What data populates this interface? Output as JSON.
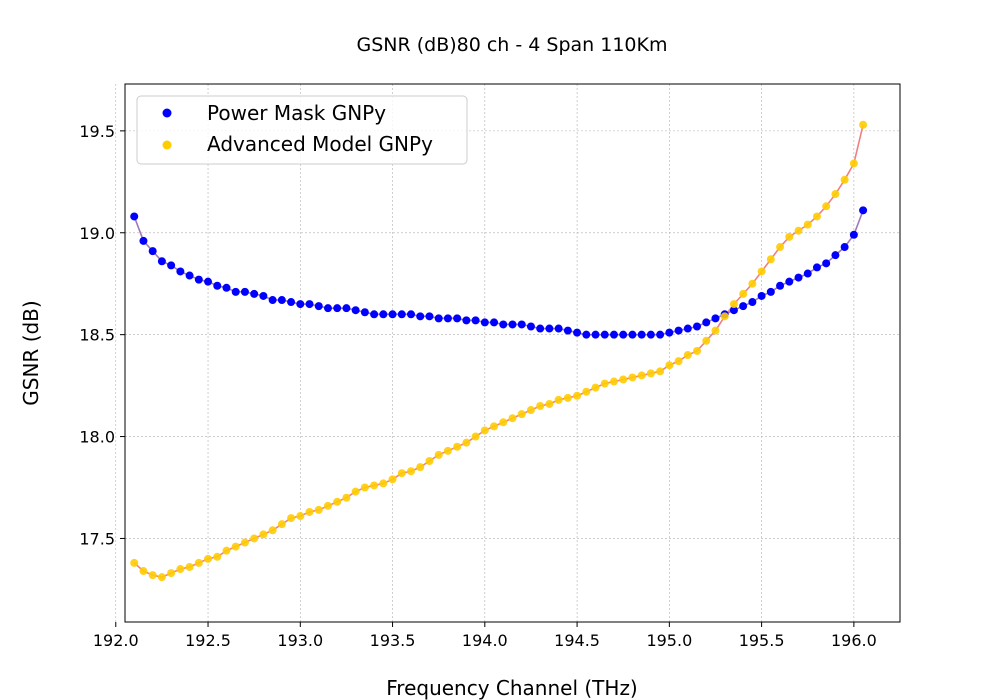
{
  "chart_data": {
    "type": "scatter",
    "title": "GSNR (dB)80 ch - 4 Span 110Km",
    "xlabel": "Frequency Channel (THz)",
    "ylabel": "GSNR (dB)",
    "xlim": [
      192.05,
      196.25
    ],
    "ylim": [
      17.09,
      19.73
    ],
    "xticks": [
      192.0,
      192.5,
      193.0,
      193.5,
      194.0,
      194.5,
      195.0,
      195.5,
      196.0
    ],
    "xtick_labels": [
      "192.0",
      "192.5",
      "193.0",
      "193.5",
      "194.0",
      "194.5",
      "195.0",
      "195.5",
      "196.0"
    ],
    "yticks": [
      17.5,
      18.0,
      18.5,
      19.0,
      19.5
    ],
    "ytick_labels": [
      "17.5",
      "18.0",
      "18.5",
      "19.0",
      "19.5"
    ],
    "grid": true,
    "legend_position": "upper-left",
    "x": [
      192.1,
      192.15,
      192.2,
      192.25,
      192.3,
      192.35,
      192.4,
      192.45,
      192.5,
      192.55,
      192.6,
      192.65,
      192.7,
      192.75,
      192.8,
      192.85,
      192.9,
      192.95,
      193.0,
      193.05,
      193.1,
      193.15,
      193.2,
      193.25,
      193.3,
      193.35,
      193.4,
      193.45,
      193.5,
      193.55,
      193.6,
      193.65,
      193.7,
      193.75,
      193.8,
      193.85,
      193.9,
      193.95,
      194.0,
      194.05,
      194.1,
      194.15,
      194.2,
      194.25,
      194.3,
      194.35,
      194.4,
      194.45,
      194.5,
      194.55,
      194.6,
      194.65,
      194.7,
      194.75,
      194.8,
      194.85,
      194.9,
      194.95,
      195.0,
      195.05,
      195.1,
      195.15,
      195.2,
      195.25,
      195.3,
      195.35,
      195.4,
      195.45,
      195.5,
      195.55,
      195.6,
      195.65,
      195.7,
      195.75,
      195.8,
      195.85,
      195.9,
      195.95,
      196.0,
      196.05
    ],
    "series": [
      {
        "name": "Power Mask GNPy",
        "color": "#0000ff",
        "line_color": "#a07ab8",
        "values": [
          19.08,
          18.96,
          18.91,
          18.86,
          18.84,
          18.81,
          18.79,
          18.77,
          18.76,
          18.74,
          18.73,
          18.71,
          18.71,
          18.7,
          18.69,
          18.67,
          18.67,
          18.66,
          18.65,
          18.65,
          18.64,
          18.63,
          18.63,
          18.63,
          18.62,
          18.61,
          18.6,
          18.6,
          18.6,
          18.6,
          18.6,
          18.59,
          18.59,
          18.58,
          18.58,
          18.58,
          18.57,
          18.57,
          18.56,
          18.56,
          18.55,
          18.55,
          18.55,
          18.54,
          18.53,
          18.53,
          18.53,
          18.52,
          18.51,
          18.5,
          18.5,
          18.5,
          18.5,
          18.5,
          18.5,
          18.5,
          18.5,
          18.5,
          18.51,
          18.52,
          18.53,
          18.54,
          18.56,
          18.58,
          18.6,
          18.62,
          18.64,
          18.66,
          18.69,
          18.71,
          18.74,
          18.76,
          18.78,
          18.8,
          18.83,
          18.85,
          18.89,
          18.93,
          18.99,
          19.11
        ]
      },
      {
        "name": "Advanced Model GNPy",
        "color": "#ffcc00",
        "line_color": "#f08080",
        "values": [
          17.38,
          17.34,
          17.32,
          17.31,
          17.33,
          17.35,
          17.36,
          17.38,
          17.4,
          17.41,
          17.44,
          17.46,
          17.48,
          17.5,
          17.52,
          17.54,
          17.57,
          17.6,
          17.61,
          17.63,
          17.64,
          17.66,
          17.68,
          17.7,
          17.73,
          17.75,
          17.76,
          17.77,
          17.79,
          17.82,
          17.83,
          17.85,
          17.88,
          17.91,
          17.93,
          17.95,
          17.97,
          18.0,
          18.03,
          18.05,
          18.07,
          18.09,
          18.11,
          18.13,
          18.15,
          18.16,
          18.18,
          18.19,
          18.2,
          18.22,
          18.24,
          18.26,
          18.27,
          18.28,
          18.29,
          18.3,
          18.31,
          18.32,
          18.35,
          18.37,
          18.4,
          18.42,
          18.47,
          18.52,
          18.59,
          18.65,
          18.7,
          18.75,
          18.81,
          18.87,
          18.93,
          18.98,
          19.01,
          19.04,
          19.08,
          19.13,
          19.19,
          19.26,
          19.34,
          19.53
        ]
      }
    ]
  }
}
